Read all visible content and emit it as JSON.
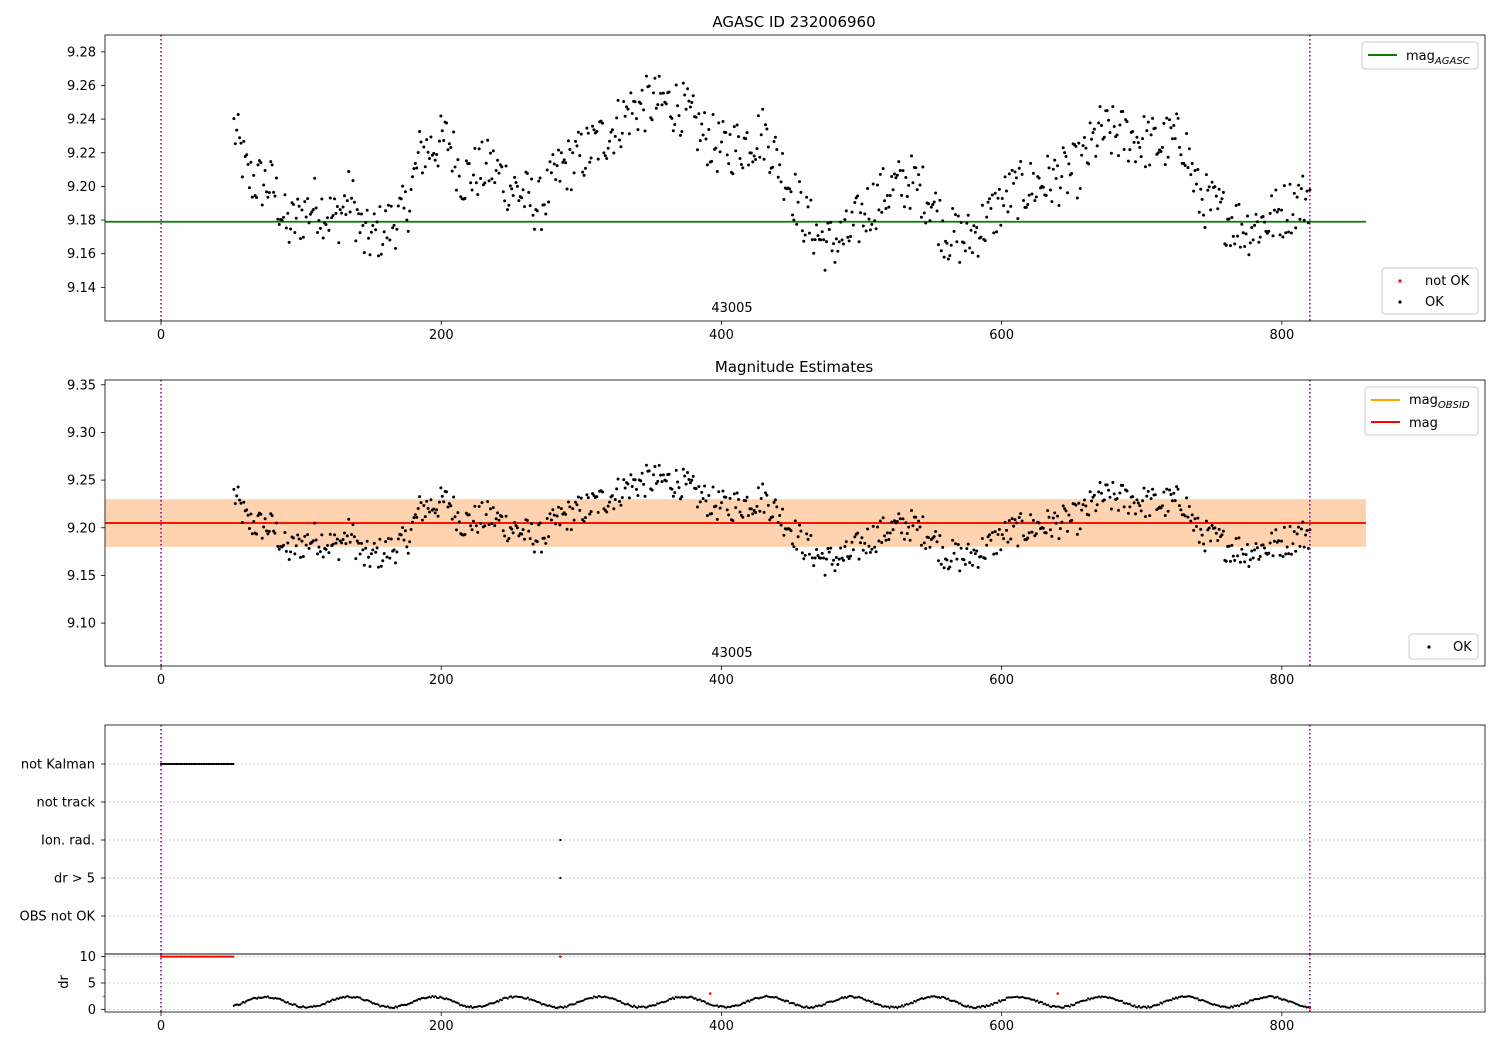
{
  "figure": {
    "title": "AGASC ID 232006960"
  },
  "chart_data": [
    {
      "type": "scatter",
      "title": "",
      "xlabel": "",
      "ylabel": "",
      "xlim": [
        -40,
        945
      ],
      "ylim": [
        9.12,
        9.29
      ],
      "xticks": [
        0,
        200,
        400,
        600,
        800
      ],
      "yticks": [
        9.14,
        9.16,
        9.18,
        9.2,
        9.22,
        9.24,
        9.26,
        9.28
      ],
      "ytick_labels": [
        "9.14",
        "9.16",
        "9.18",
        "9.20",
        "9.22",
        "9.24",
        "9.26",
        "9.28"
      ],
      "mag_agasc": 9.179,
      "obsid_label": "43005",
      "vlines": [
        0,
        820
      ],
      "legend_upper": [
        {
          "label": "mag",
          "subscript": "AGASC",
          "color": "#008000"
        }
      ],
      "legend_lower": [
        {
          "label": "not OK",
          "color": "#ff0000"
        },
        {
          "label": "OK",
          "color": "#000000"
        }
      ],
      "series": [
        {
          "name": "OK",
          "x_start": 52,
          "x_end": 820,
          "n_points": 760,
          "envelope": [
            [
              52,
              9.235
            ],
            [
              62,
              9.205
            ],
            [
              80,
              9.2
            ],
            [
              90,
              9.175
            ],
            [
              110,
              9.19
            ],
            [
              125,
              9.18
            ],
            [
              135,
              9.195
            ],
            [
              145,
              9.168
            ],
            [
              160,
              9.175
            ],
            [
              175,
              9.185
            ],
            [
              185,
              9.22
            ],
            [
              205,
              9.228
            ],
            [
              215,
              9.205
            ],
            [
              235,
              9.212
            ],
            [
              250,
              9.2
            ],
            [
              270,
              9.188
            ],
            [
              285,
              9.21
            ],
            [
              300,
              9.218
            ],
            [
              320,
              9.232
            ],
            [
              335,
              9.245
            ],
            [
              350,
              9.25
            ],
            [
              370,
              9.248
            ],
            [
              385,
              9.232
            ],
            [
              400,
              9.222
            ],
            [
              415,
              9.225
            ],
            [
              430,
              9.232
            ],
            [
              445,
              9.208
            ],
            [
              460,
              9.18
            ],
            [
              475,
              9.165
            ],
            [
              490,
              9.17
            ],
            [
              505,
              9.188
            ],
            [
              520,
              9.198
            ],
            [
              535,
              9.203
            ],
            [
              550,
              9.192
            ],
            [
              560,
              9.172
            ],
            [
              575,
              9.168
            ],
            [
              590,
              9.18
            ],
            [
              605,
              9.195
            ],
            [
              620,
              9.2
            ],
            [
              640,
              9.205
            ],
            [
              655,
              9.21
            ],
            [
              670,
              9.232
            ],
            [
              690,
              9.23
            ],
            [
              710,
              9.225
            ],
            [
              730,
              9.228
            ],
            [
              740,
              9.195
            ],
            [
              760,
              9.182
            ],
            [
              775,
              9.175
            ],
            [
              790,
              9.18
            ],
            [
              805,
              9.188
            ],
            [
              820,
              9.195
            ]
          ]
        }
      ]
    },
    {
      "type": "scatter",
      "title": "Magnitude Estimates",
      "xlabel": "",
      "ylabel": "",
      "xlim": [
        -40,
        945
      ],
      "ylim": [
        9.055,
        9.355
      ],
      "xticks": [
        0,
        200,
        400,
        600,
        800
      ],
      "yticks": [
        9.1,
        9.15,
        9.2,
        9.25,
        9.3,
        9.35
      ],
      "ytick_labels": [
        "9.10",
        "9.15",
        "9.20",
        "9.25",
        "9.30",
        "9.35"
      ],
      "mag": 9.205,
      "mag_band": [
        9.18,
        9.23
      ],
      "mag_obsid": 9.205,
      "mag_obsid_band": [
        9.18,
        9.23
      ],
      "obsid_label": "43005",
      "vlines": [
        0,
        820
      ],
      "legend_upper": [
        {
          "label": "mag",
          "subscript": "OBSID",
          "color": "#ffa500"
        },
        {
          "label": "mag",
          "subscript": "",
          "color": "#ff0000"
        }
      ],
      "legend_lower": [
        {
          "label": "OK",
          "color": "#000000"
        }
      ],
      "series": [
        {
          "name": "OK",
          "same_as_panel": 0
        }
      ]
    },
    {
      "type": "scatter",
      "title": "",
      "xlabel": "",
      "ylabel": "",
      "xlim": [
        -40,
        945
      ],
      "xticks": [
        0,
        200,
        400,
        600,
        800
      ],
      "flag_rows": [
        "not Kalman",
        "not track",
        "Ion. rad.",
        "dr > 5",
        "OBS not OK"
      ],
      "flag_points": [
        {
          "row": "not Kalman",
          "x_start": 0,
          "x_end": 52
        },
        {
          "row": "Ion. rad.",
          "x": 285
        },
        {
          "row": "dr > 5",
          "x": 285
        }
      ],
      "vlines": [
        0,
        820
      ]
    },
    {
      "type": "scatter",
      "title": "",
      "xlabel": "",
      "ylabel": "dr",
      "xlim": [
        -40,
        945
      ],
      "ylim": [
        -0.5,
        10.5
      ],
      "xticks": [
        0,
        200,
        400,
        600,
        800
      ],
      "yticks": [
        0,
        5,
        10
      ],
      "ytick_labels": [
        "0",
        "5",
        "10"
      ],
      "vlines": [
        0,
        820
      ],
      "series": [
        {
          "name": "not OK",
          "x_start": 0,
          "x_end": 52,
          "value": 10,
          "extra_points": [
            [
              285,
              10
            ],
            [
              392,
              3
            ],
            [
              640,
              3
            ],
            [
              820,
              0.3
            ]
          ]
        },
        {
          "name": "OK",
          "x_start": 52,
          "x_end": 820,
          "value_range": [
            0,
            3
          ]
        }
      ]
    }
  ]
}
